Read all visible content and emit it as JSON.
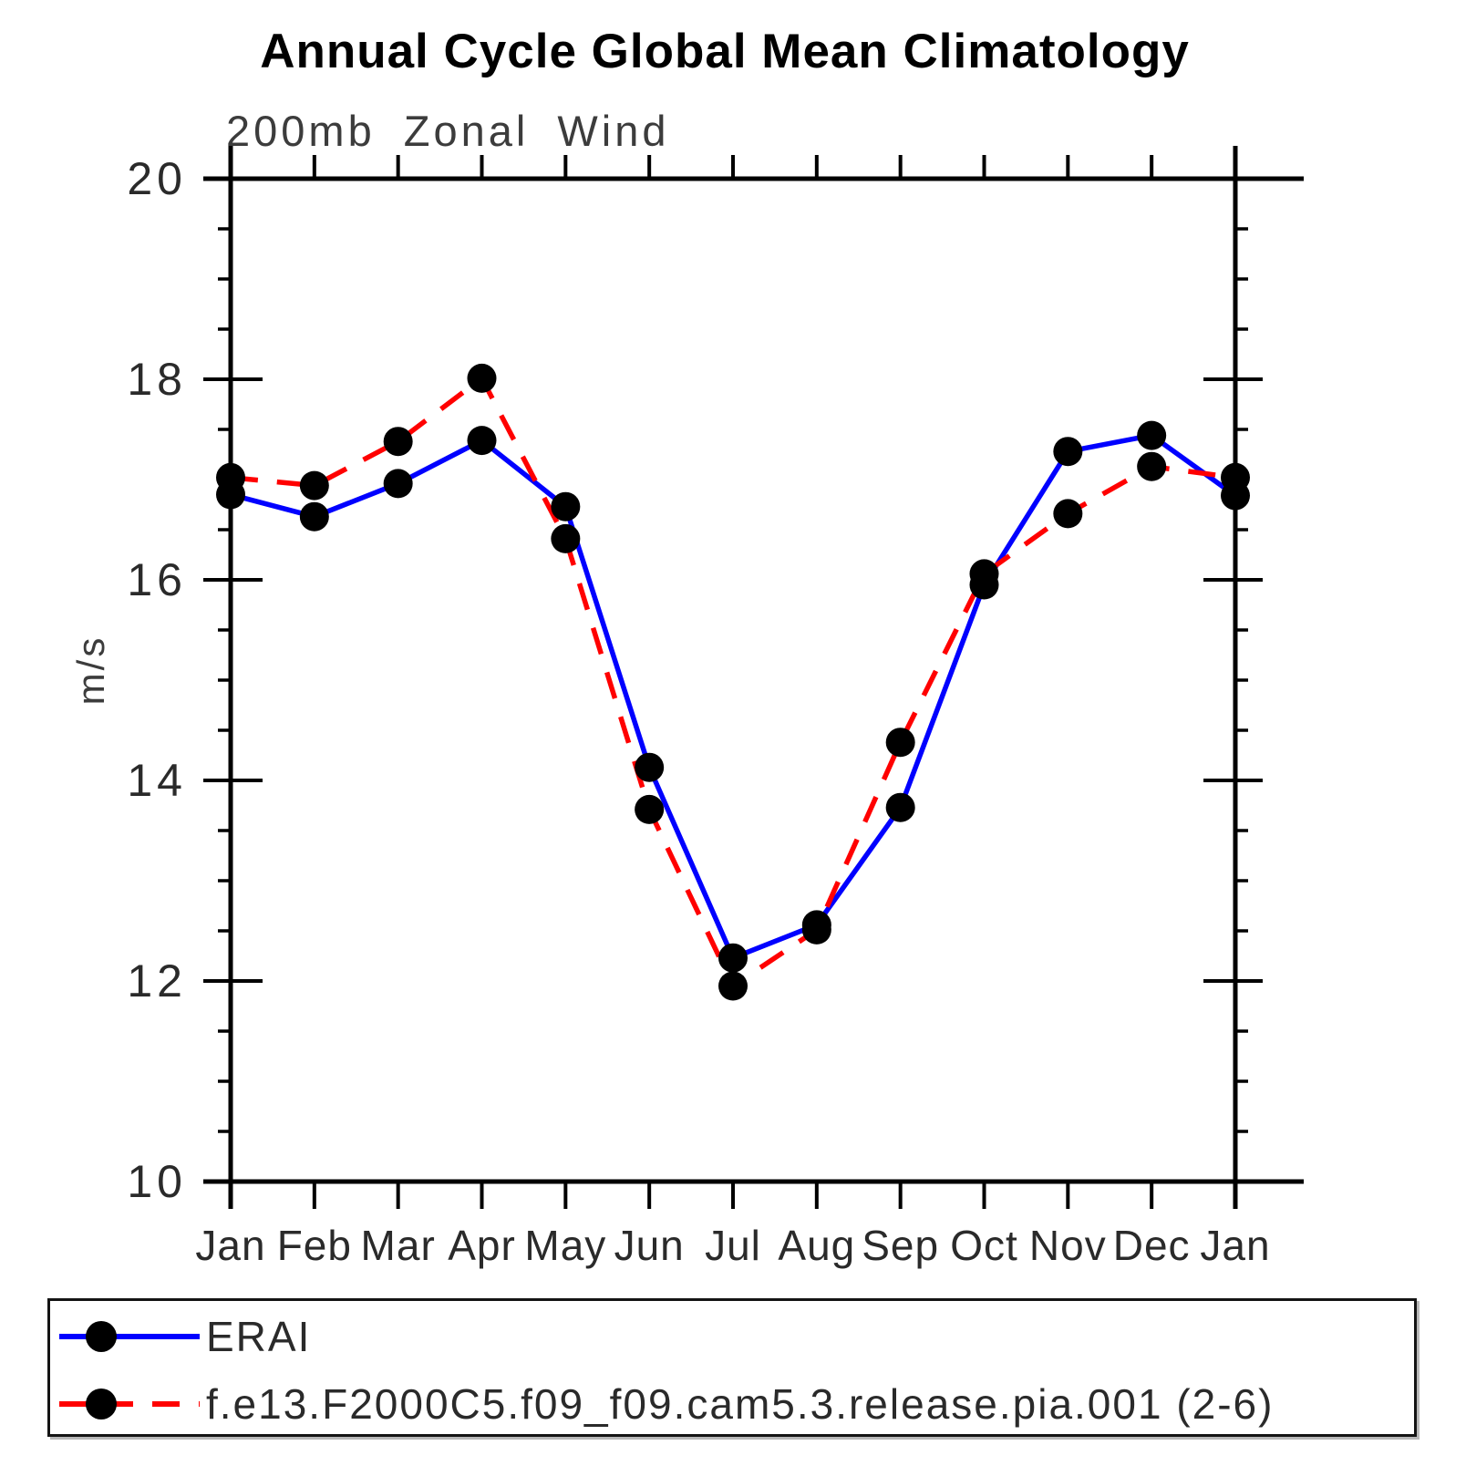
{
  "chart_data": {
    "type": "line",
    "title": "Annual Cycle Global Mean Climatology",
    "subtitle": "200mb Zonal Wind",
    "ylabel": "m/s",
    "ylim": [
      10,
      20
    ],
    "ytick_major": [
      10,
      12,
      14,
      16,
      18,
      20
    ],
    "ytick_minor_step": 0.5,
    "categories": [
      "Jan",
      "Feb",
      "Mar",
      "Apr",
      "May",
      "Jun",
      "Jul",
      "Aug",
      "Sep",
      "Oct",
      "Nov",
      "Dec",
      "Jan"
    ],
    "grid": false,
    "legend_position": "bottom",
    "marker": {
      "shape": "circle",
      "color": "#000000"
    },
    "series": [
      {
        "name": "ERAI",
        "color": "#0000ff",
        "line_style": "solid",
        "values": [
          16.85,
          16.63,
          16.96,
          17.39,
          16.73,
          14.13,
          12.23,
          12.56,
          13.73,
          15.95,
          17.28,
          17.44,
          16.84
        ]
      },
      {
        "name": "f.e13.F2000C5.f09_f09.cam5.3.release.pia.001 (2-6)",
        "color": "#ff0000",
        "line_style": "dashed",
        "values": [
          17.02,
          16.94,
          17.38,
          18.01,
          16.41,
          13.71,
          11.95,
          12.51,
          14.38,
          16.06,
          16.66,
          17.13,
          17.02
        ]
      }
    ]
  }
}
